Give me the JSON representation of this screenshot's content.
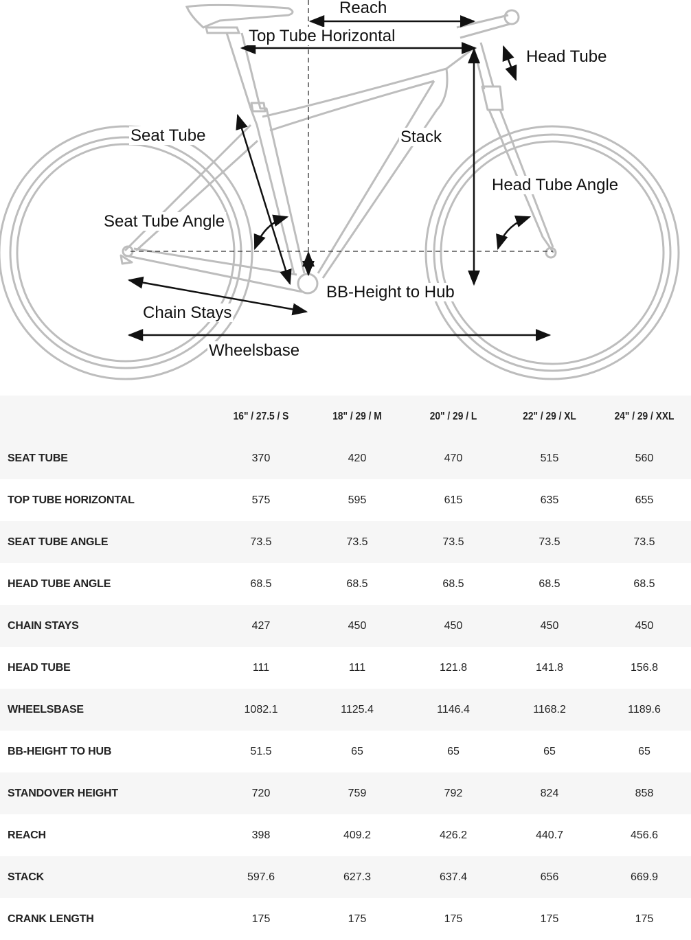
{
  "diagram": {
    "labels": {
      "reach": "Reach",
      "top_tube_horizontal": "Top Tube Horizontal",
      "head_tube": "Head Tube",
      "seat_tube": "Seat Tube",
      "stack": "Stack",
      "head_tube_angle": "Head Tube Angle",
      "seat_tube_angle": "Seat Tube Angle",
      "bb_height_to_hub": "BB-Height to Hub",
      "chain_stays": "Chain Stays",
      "wheelsbase": "Wheelsbase"
    }
  },
  "table": {
    "columns": [
      "16\" / 27.5 / S",
      "18\" / 29 / M",
      "20\" / 29 / L",
      "22\" / 29 / XL",
      "24\" / 29 / XXL"
    ],
    "rows": [
      {
        "label": "SEAT TUBE",
        "values": [
          "370",
          "420",
          "470",
          "515",
          "560"
        ]
      },
      {
        "label": "TOP TUBE HORIZONTAL",
        "values": [
          "575",
          "595",
          "615",
          "635",
          "655"
        ]
      },
      {
        "label": "SEAT TUBE ANGLE",
        "values": [
          "73.5",
          "73.5",
          "73.5",
          "73.5",
          "73.5"
        ]
      },
      {
        "label": "HEAD TUBE ANGLE",
        "values": [
          "68.5",
          "68.5",
          "68.5",
          "68.5",
          "68.5"
        ]
      },
      {
        "label": "CHAIN STAYS",
        "values": [
          "427",
          "450",
          "450",
          "450",
          "450"
        ]
      },
      {
        "label": "HEAD TUBE",
        "values": [
          "111",
          "111",
          "121.8",
          "141.8",
          "156.8"
        ]
      },
      {
        "label": "WHEELSBASE",
        "values": [
          "1082.1",
          "1125.4",
          "1146.4",
          "1168.2",
          "1189.6"
        ]
      },
      {
        "label": "BB-HEIGHT TO HUB",
        "values": [
          "51.5",
          "65",
          "65",
          "65",
          "65"
        ]
      },
      {
        "label": "STANDOVER HEIGHT",
        "values": [
          "720",
          "759",
          "792",
          "824",
          "858"
        ]
      },
      {
        "label": "REACH",
        "values": [
          "398",
          "409.2",
          "426.2",
          "440.7",
          "456.6"
        ]
      },
      {
        "label": "STACK",
        "values": [
          "597.6",
          "627.3",
          "637.4",
          "656",
          "669.9"
        ]
      },
      {
        "label": "CRANK LENGTH",
        "values": [
          "175",
          "175",
          "175",
          "175",
          "175"
        ]
      }
    ]
  }
}
